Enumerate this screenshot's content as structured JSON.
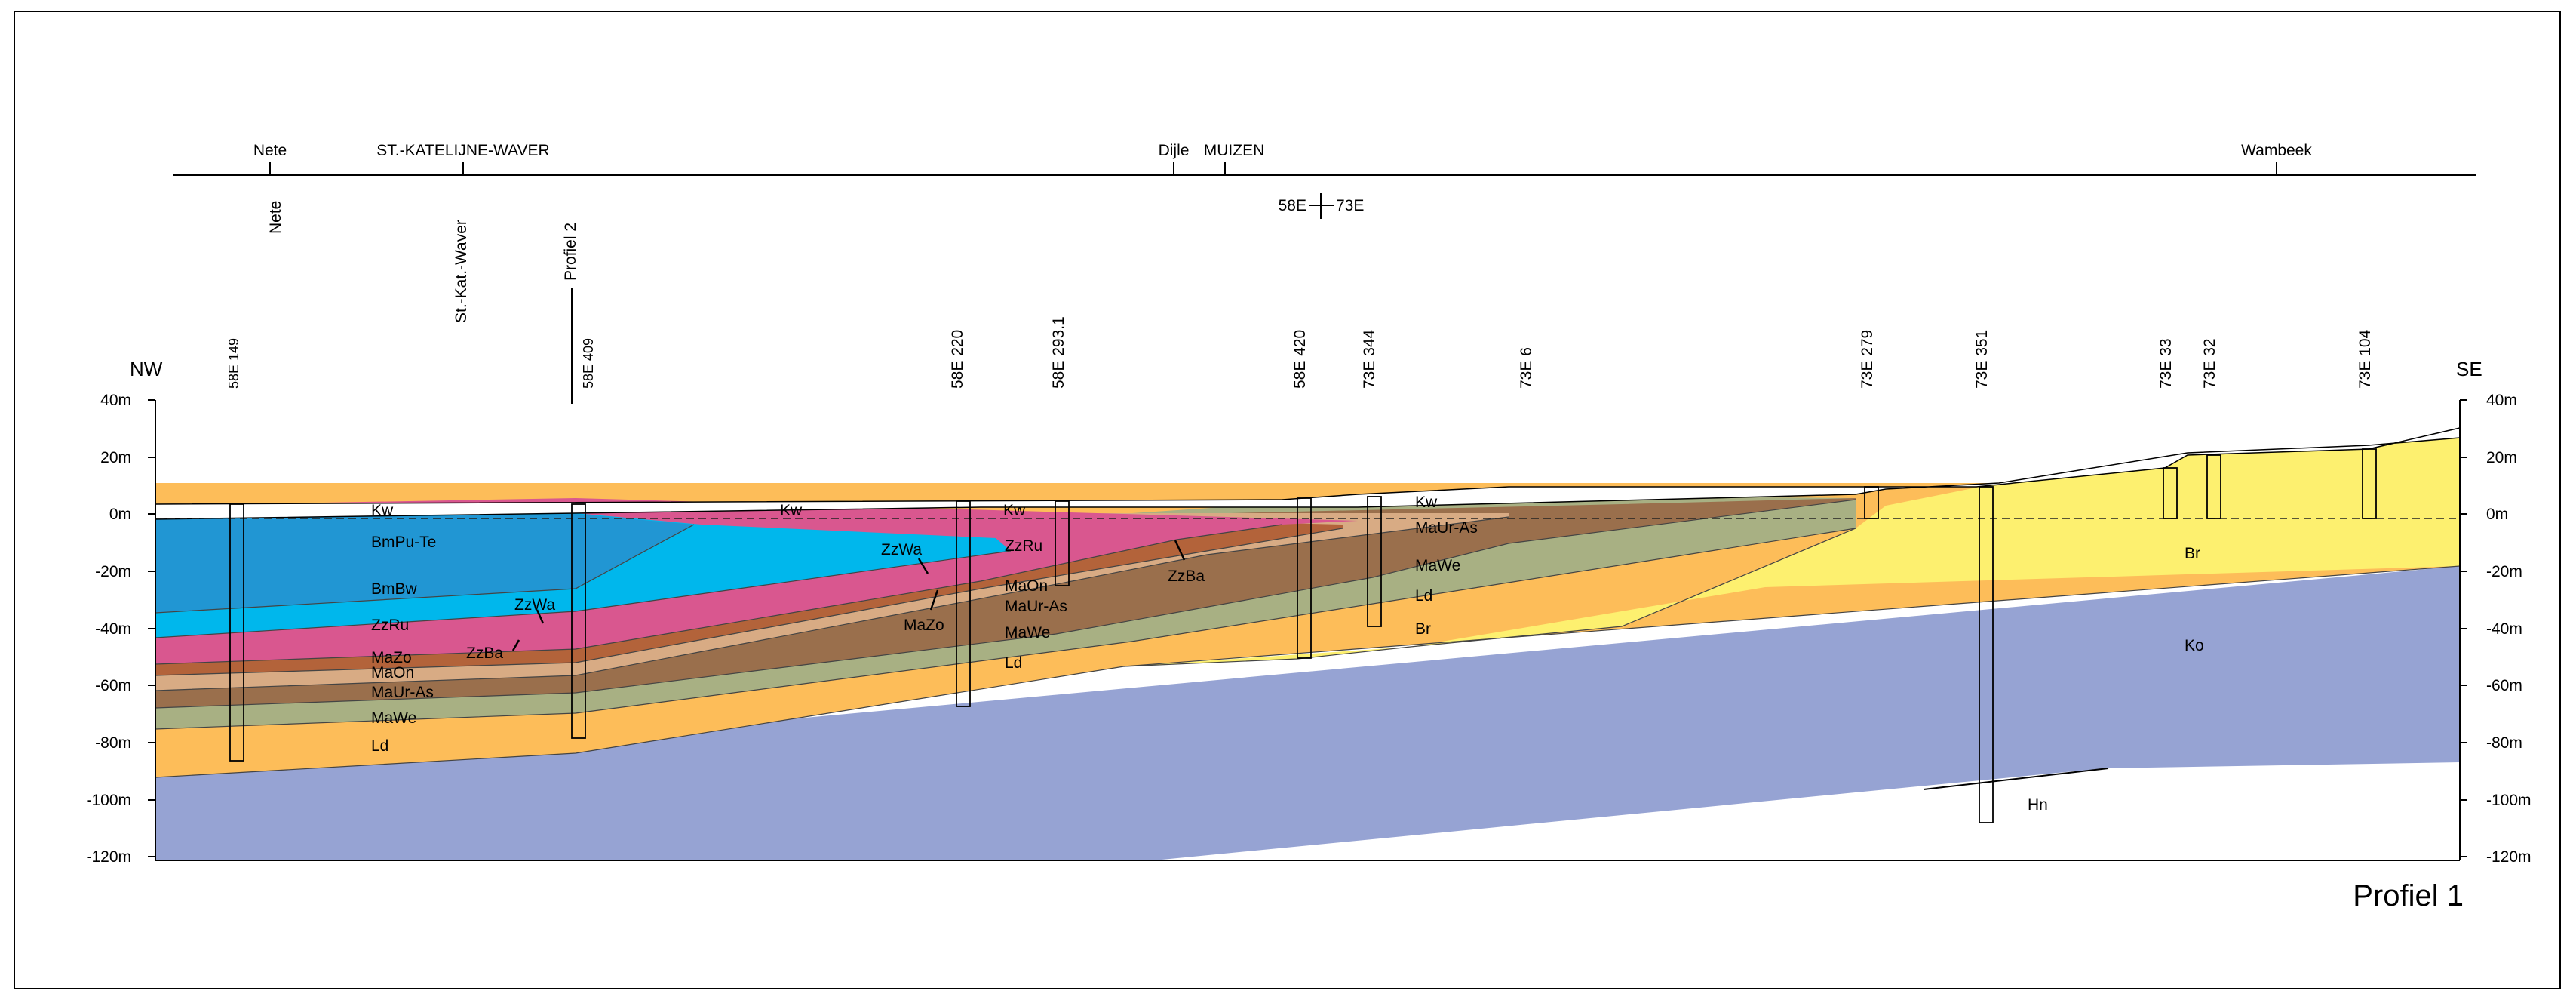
{
  "profile_title": "Profiel 1",
  "left_corner": "NW",
  "right_corner": "SE",
  "top_labels": {
    "nete": "Nete",
    "katelijne": "ST.-KATELIJNE-WAVER",
    "dijle": "Dijle",
    "muizen": "MUIZEN",
    "wambeek": "Wambeek",
    "map_sheet": "58E",
    "map_sheet_2": "73E"
  },
  "vertical_labels": {
    "nete": "Nete",
    "katelijne": "St.-Kat.-Waver",
    "profiel2": "Profiel 2"
  },
  "elevation_axis": [
    "40m",
    "20m",
    "0m",
    "-20m",
    "-40m",
    "-60m",
    "-80m",
    "-100m",
    "-120m"
  ],
  "boreholes": [
    "58E 149",
    "58E 409",
    "58E 220",
    "58E 293.1",
    "58E 420",
    "73E 344",
    "73E 6",
    "73E 279",
    "73E 351",
    "73E 33",
    "73E 32",
    "73E 104"
  ],
  "units": {
    "kw1": "Kw",
    "kw2": "Kw",
    "kw3": "Kw",
    "kw4": "Kw",
    "bmpu": "BmPu-Te",
    "bmbw": "BmBw",
    "zzru1": "ZzRu",
    "zzwa1": "ZzWa",
    "mazo1": "MaZo",
    "zzba1": "ZzBa",
    "maon1": "MaOn",
    "maur1": "MaUr-As",
    "mawe1": "MaWe",
    "ld1": "Ld",
    "zzwa2": "ZzWa",
    "zzru2": "ZzRu",
    "maon2": "MaOn",
    "maur2": "MaUr-As",
    "mazo2": "MaZo",
    "mawe2": "MaWe",
    "ld2": "Ld",
    "zzba2": "ZzBa",
    "maur3": "MaUr-As",
    "mawe3": "MaWe",
    "ld3": "Ld",
    "br1": "Br",
    "br2": "Br",
    "ko": "Ko",
    "hn": "Hn"
  },
  "colors": {
    "BmPu-Te": "#2196d3",
    "BmBw": "#00b7ec",
    "Zz": "#d9578f",
    "ZzBa": "#b3633a",
    "MaOn": "#d8ab84",
    "MaUr-As": "#9a6f4c",
    "MaWe": "#a8b083",
    "Ld": "#fdbd59",
    "Br": "#fdf06f",
    "Ko": "#96a3d3"
  }
}
